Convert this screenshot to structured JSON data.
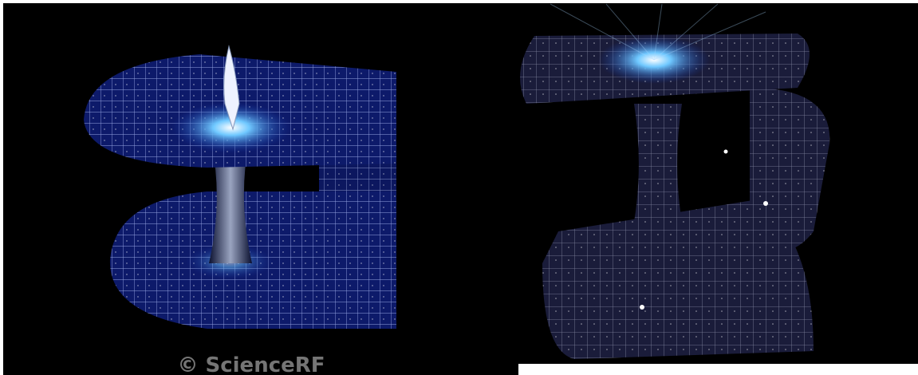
{
  "watermark": "© ScienceRF"
}
